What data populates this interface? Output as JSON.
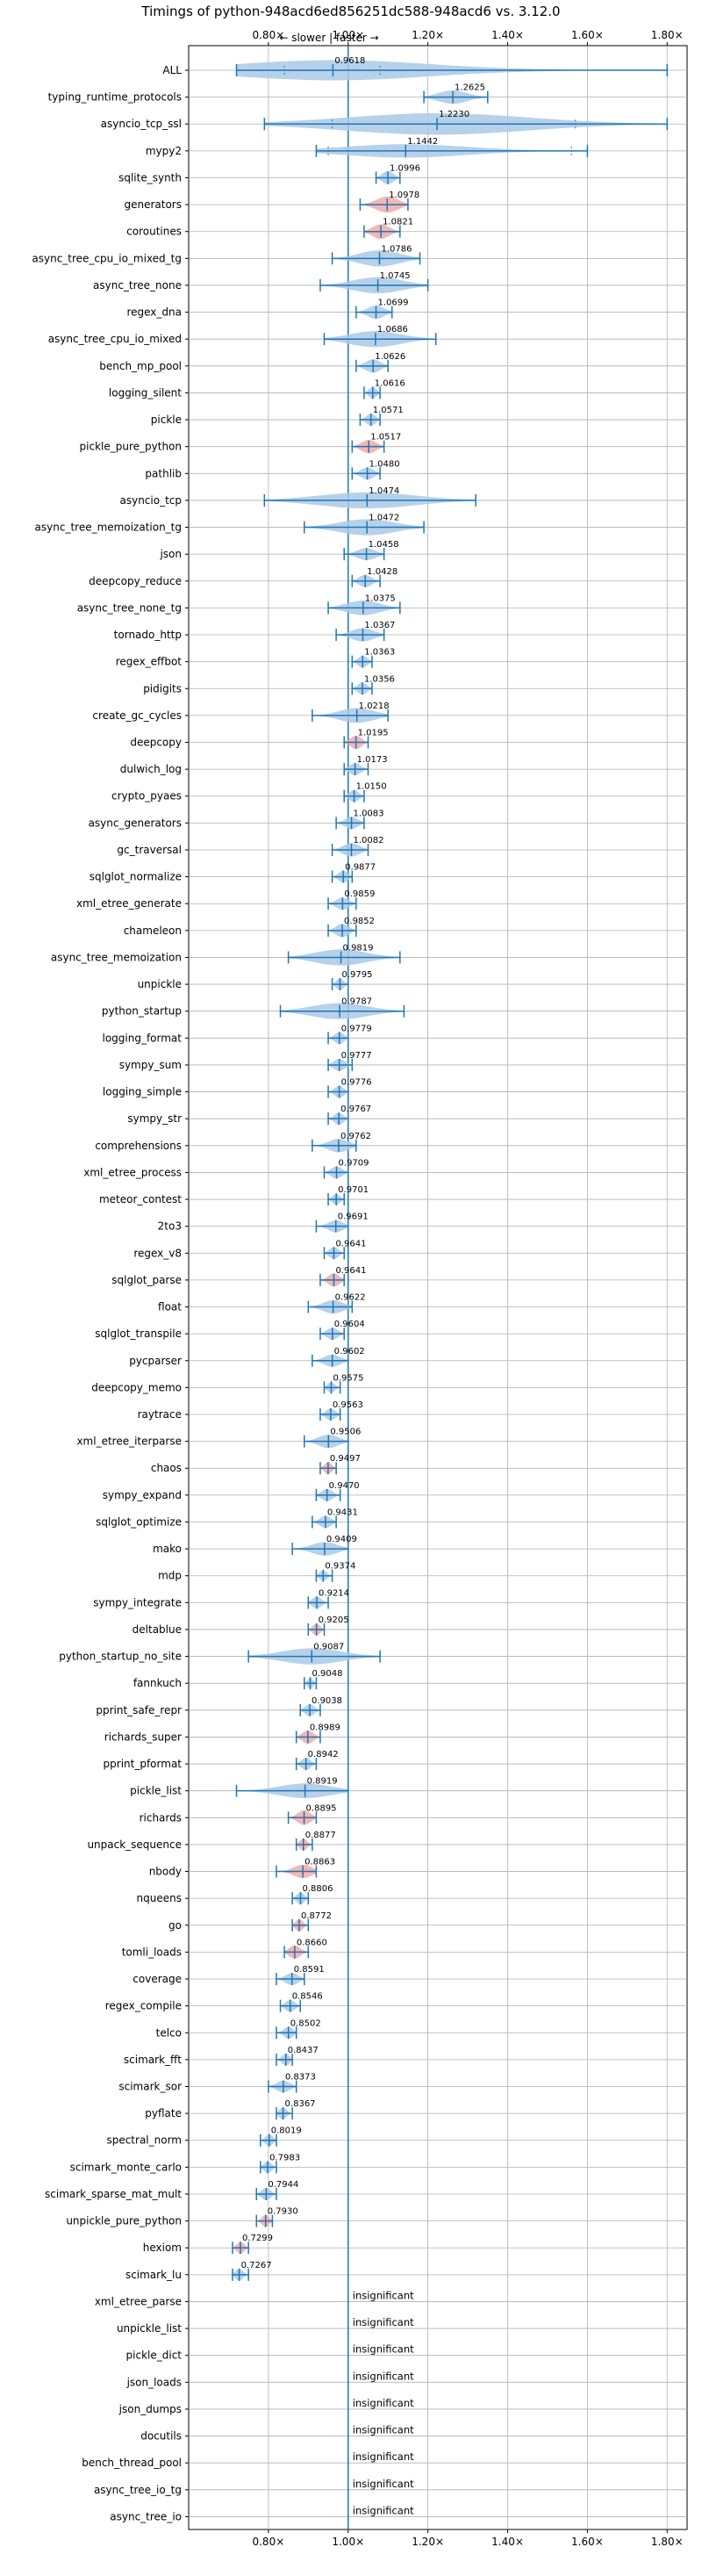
{
  "chart_data": {
    "type": "violin",
    "title": "Timings of python-948acd6ed856251dc588-948acd6 vs. 3.12.0",
    "direction_label": "← slower | faster →",
    "x_ticks": [
      "0.80×",
      "1.00×",
      "1.20×",
      "1.40×",
      "1.60×",
      "1.80×"
    ],
    "x_tick_values": [
      0.8,
      1.0,
      1.2,
      1.4,
      1.6,
      1.8
    ],
    "xlim": [
      0.6,
      1.85
    ],
    "reference_line": 1.0,
    "grid": true,
    "colors": {
      "violin": "#aac9e6",
      "significant": "#f4a9a9",
      "line": "#1f77b4",
      "grid": "#b0b0b0"
    },
    "insignificant_label": "insignificant",
    "benchmarks": [
      {
        "name": "ALL",
        "value": 0.9618,
        "label": "0.9618",
        "min": 0.72,
        "max": 1.8,
        "width": 0.75,
        "significant": false,
        "q1": 0.84,
        "q3": 1.08
      },
      {
        "name": "typing_runtime_protocols",
        "value": 1.2625,
        "label": "1.2625",
        "min": 1.19,
        "max": 1.35,
        "width": 0.5,
        "significant": false
      },
      {
        "name": "asyncio_tcp_ssl",
        "value": 1.223,
        "label": "1.2230",
        "min": 0.79,
        "max": 1.8,
        "width": 0.8,
        "significant": false,
        "q1": 0.96,
        "q3": 1.57
      },
      {
        "name": "mypy2",
        "value": 1.1442,
        "label": "1.1442",
        "min": 0.92,
        "max": 1.6,
        "width": 0.5,
        "significant": false,
        "q1": 0.95,
        "q3": 1.56
      },
      {
        "name": "sqlite_synth",
        "value": 1.0996,
        "label": "1.0996",
        "min": 1.07,
        "max": 1.13,
        "width": 0.5,
        "significant": false
      },
      {
        "name": "generators",
        "value": 1.0978,
        "label": "1.0978",
        "min": 1.03,
        "max": 1.15,
        "width": 0.6,
        "significant": true
      },
      {
        "name": "coroutines",
        "value": 1.0821,
        "label": "1.0821",
        "min": 1.04,
        "max": 1.13,
        "width": 0.55,
        "significant": true
      },
      {
        "name": "async_tree_cpu_io_mixed_tg",
        "value": 1.0786,
        "label": "1.0786",
        "min": 0.96,
        "max": 1.18,
        "width": 0.6,
        "significant": false
      },
      {
        "name": "async_tree_none",
        "value": 1.0745,
        "label": "1.0745",
        "min": 0.93,
        "max": 1.2,
        "width": 0.6,
        "significant": false
      },
      {
        "name": "regex_dna",
        "value": 1.0699,
        "label": "1.0699",
        "min": 1.02,
        "max": 1.11,
        "width": 0.5,
        "significant": false
      },
      {
        "name": "async_tree_cpu_io_mixed",
        "value": 1.0686,
        "label": "1.0686",
        "min": 0.94,
        "max": 1.22,
        "width": 0.6,
        "significant": false
      },
      {
        "name": "bench_mp_pool",
        "value": 1.0626,
        "label": "1.0626",
        "min": 1.02,
        "max": 1.1,
        "width": 0.5,
        "significant": false
      },
      {
        "name": "logging_silent",
        "value": 1.0616,
        "label": "1.0616",
        "min": 1.04,
        "max": 1.08,
        "width": 0.45,
        "significant": false
      },
      {
        "name": "pickle",
        "value": 1.0571,
        "label": "1.0571",
        "min": 1.03,
        "max": 1.08,
        "width": 0.45,
        "significant": false
      },
      {
        "name": "pickle_pure_python",
        "value": 1.0517,
        "label": "1.0517",
        "min": 1.01,
        "max": 1.09,
        "width": 0.5,
        "significant": true
      },
      {
        "name": "pathlib",
        "value": 1.048,
        "label": "1.0480",
        "min": 1.01,
        "max": 1.08,
        "width": 0.45,
        "significant": false
      },
      {
        "name": "asyncio_tcp",
        "value": 1.0474,
        "label": "1.0474",
        "min": 0.79,
        "max": 1.32,
        "width": 0.6,
        "significant": false
      },
      {
        "name": "async_tree_memoization_tg",
        "value": 1.0472,
        "label": "1.0472",
        "min": 0.89,
        "max": 1.19,
        "width": 0.6,
        "significant": false
      },
      {
        "name": "json",
        "value": 1.0458,
        "label": "1.0458",
        "min": 0.99,
        "max": 1.09,
        "width": 0.45,
        "significant": false
      },
      {
        "name": "deepcopy_reduce",
        "value": 1.0428,
        "label": "1.0428",
        "min": 1.01,
        "max": 1.08,
        "width": 0.45,
        "significant": false
      },
      {
        "name": "async_tree_none_tg",
        "value": 1.0375,
        "label": "1.0375",
        "min": 0.95,
        "max": 1.13,
        "width": 0.55,
        "significant": false
      },
      {
        "name": "tornado_http",
        "value": 1.0367,
        "label": "1.0367",
        "min": 0.97,
        "max": 1.09,
        "width": 0.5,
        "significant": false
      },
      {
        "name": "regex_effbot",
        "value": 1.0363,
        "label": "1.0363",
        "min": 1.01,
        "max": 1.06,
        "width": 0.45,
        "significant": false
      },
      {
        "name": "pidigits",
        "value": 1.0356,
        "label": "1.0356",
        "min": 1.01,
        "max": 1.06,
        "width": 0.45,
        "significant": false
      },
      {
        "name": "create_gc_cycles",
        "value": 1.0218,
        "label": "1.0218",
        "min": 0.91,
        "max": 1.1,
        "width": 0.55,
        "significant": false
      },
      {
        "name": "deepcopy",
        "value": 1.0195,
        "label": "1.0195",
        "min": 0.99,
        "max": 1.05,
        "width": 0.5,
        "significant": true
      },
      {
        "name": "dulwich_log",
        "value": 1.0173,
        "label": "1.0173",
        "min": 0.99,
        "max": 1.05,
        "width": 0.45,
        "significant": false
      },
      {
        "name": "crypto_pyaes",
        "value": 1.015,
        "label": "1.0150",
        "min": 0.99,
        "max": 1.04,
        "width": 0.45,
        "significant": false
      },
      {
        "name": "async_generators",
        "value": 1.0083,
        "label": "1.0083",
        "min": 0.97,
        "max": 1.04,
        "width": 0.45,
        "significant": false
      },
      {
        "name": "gc_traversal",
        "value": 1.0082,
        "label": "1.0082",
        "min": 0.96,
        "max": 1.05,
        "width": 0.5,
        "significant": false
      },
      {
        "name": "sqlglot_normalize",
        "value": 0.9877,
        "label": "0.9877",
        "min": 0.96,
        "max": 1.01,
        "width": 0.45,
        "significant": false
      },
      {
        "name": "xml_etree_generate",
        "value": 0.9859,
        "label": "0.9859",
        "min": 0.95,
        "max": 1.02,
        "width": 0.45,
        "significant": false
      },
      {
        "name": "chameleon",
        "value": 0.9852,
        "label": "0.9852",
        "min": 0.95,
        "max": 1.02,
        "width": 0.5,
        "significant": false
      },
      {
        "name": "async_tree_memoization",
        "value": 0.9819,
        "label": "0.9819",
        "min": 0.85,
        "max": 1.13,
        "width": 0.6,
        "significant": false
      },
      {
        "name": "unpickle",
        "value": 0.9795,
        "label": "0.9795",
        "min": 0.96,
        "max": 1.0,
        "width": 0.45,
        "significant": false
      },
      {
        "name": "python_startup",
        "value": 0.9787,
        "label": "0.9787",
        "min": 0.83,
        "max": 1.14,
        "width": 0.6,
        "significant": false
      },
      {
        "name": "logging_format",
        "value": 0.9779,
        "label": "0.9779",
        "min": 0.95,
        "max": 1.0,
        "width": 0.45,
        "significant": false
      },
      {
        "name": "sympy_sum",
        "value": 0.9777,
        "label": "0.9777",
        "min": 0.95,
        "max": 1.01,
        "width": 0.45,
        "significant": false
      },
      {
        "name": "logging_simple",
        "value": 0.9776,
        "label": "0.9776",
        "min": 0.95,
        "max": 1.0,
        "width": 0.45,
        "significant": false
      },
      {
        "name": "sympy_str",
        "value": 0.9767,
        "label": "0.9767",
        "min": 0.95,
        "max": 1.0,
        "width": 0.45,
        "significant": false
      },
      {
        "name": "comprehensions",
        "value": 0.9762,
        "label": "0.9762",
        "min": 0.91,
        "max": 1.02,
        "width": 0.5,
        "significant": false
      },
      {
        "name": "xml_etree_process",
        "value": 0.9709,
        "label": "0.9709",
        "min": 0.94,
        "max": 1.0,
        "width": 0.45,
        "significant": false
      },
      {
        "name": "meteor_contest",
        "value": 0.9701,
        "label": "0.9701",
        "min": 0.95,
        "max": 0.99,
        "width": 0.4,
        "significant": false
      },
      {
        "name": "2to3",
        "value": 0.9691,
        "label": "0.9691",
        "min": 0.92,
        "max": 1.0,
        "width": 0.45,
        "significant": false
      },
      {
        "name": "regex_v8",
        "value": 0.9641,
        "label": "0.9641",
        "min": 0.94,
        "max": 0.99,
        "width": 0.45,
        "significant": false
      },
      {
        "name": "sqlglot_parse",
        "value": 0.9641,
        "label": "0.9641",
        "min": 0.93,
        "max": 0.99,
        "width": 0.5,
        "significant": true
      },
      {
        "name": "float",
        "value": 0.9622,
        "label": "0.9622",
        "min": 0.9,
        "max": 1.01,
        "width": 0.5,
        "significant": false
      },
      {
        "name": "sqlglot_transpile",
        "value": 0.9604,
        "label": "0.9604",
        "min": 0.93,
        "max": 0.99,
        "width": 0.45,
        "significant": false
      },
      {
        "name": "pycparser",
        "value": 0.9602,
        "label": "0.9602",
        "min": 0.91,
        "max": 1.0,
        "width": 0.45,
        "significant": false
      },
      {
        "name": "deepcopy_memo",
        "value": 0.9575,
        "label": "0.9575",
        "min": 0.94,
        "max": 0.98,
        "width": 0.4,
        "significant": false
      },
      {
        "name": "raytrace",
        "value": 0.9563,
        "label": "0.9563",
        "min": 0.93,
        "max": 0.98,
        "width": 0.45,
        "significant": false
      },
      {
        "name": "xml_etree_iterparse",
        "value": 0.9506,
        "label": "0.9506",
        "min": 0.89,
        "max": 1.0,
        "width": 0.5,
        "significant": false
      },
      {
        "name": "chaos",
        "value": 0.9497,
        "label": "0.9497",
        "min": 0.93,
        "max": 0.97,
        "width": 0.45,
        "significant": true
      },
      {
        "name": "sympy_expand",
        "value": 0.947,
        "label": "0.9470",
        "min": 0.92,
        "max": 0.98,
        "width": 0.45,
        "significant": false
      },
      {
        "name": "sqlglot_optimize",
        "value": 0.9431,
        "label": "0.9431",
        "min": 0.91,
        "max": 0.97,
        "width": 0.45,
        "significant": false
      },
      {
        "name": "mako",
        "value": 0.9409,
        "label": "0.9409",
        "min": 0.86,
        "max": 1.0,
        "width": 0.5,
        "significant": false
      },
      {
        "name": "mdp",
        "value": 0.9374,
        "label": "0.9374",
        "min": 0.92,
        "max": 0.96,
        "width": 0.4,
        "significant": false
      },
      {
        "name": "sympy_integrate",
        "value": 0.9214,
        "label": "0.9214",
        "min": 0.9,
        "max": 0.95,
        "width": 0.45,
        "significant": false
      },
      {
        "name": "deltablue",
        "value": 0.9205,
        "label": "0.9205",
        "min": 0.9,
        "max": 0.94,
        "width": 0.45,
        "significant": true
      },
      {
        "name": "python_startup_no_site",
        "value": 0.9087,
        "label": "0.9087",
        "min": 0.75,
        "max": 1.08,
        "width": 0.6,
        "significant": false
      },
      {
        "name": "fannkuch",
        "value": 0.9048,
        "label": "0.9048",
        "min": 0.89,
        "max": 0.92,
        "width": 0.4,
        "significant": false
      },
      {
        "name": "pprint_safe_repr",
        "value": 0.9038,
        "label": "0.9038",
        "min": 0.88,
        "max": 0.93,
        "width": 0.45,
        "significant": false
      },
      {
        "name": "richards_super",
        "value": 0.8989,
        "label": "0.8989",
        "min": 0.87,
        "max": 0.93,
        "width": 0.5,
        "significant": true
      },
      {
        "name": "pprint_pformat",
        "value": 0.8942,
        "label": "0.8942",
        "min": 0.87,
        "max": 0.92,
        "width": 0.45,
        "significant": false
      },
      {
        "name": "pickle_list",
        "value": 0.8919,
        "label": "0.8919",
        "min": 0.72,
        "max": 1.0,
        "width": 0.55,
        "significant": false
      },
      {
        "name": "richards",
        "value": 0.8895,
        "label": "0.8895",
        "min": 0.85,
        "max": 0.92,
        "width": 0.55,
        "significant": true
      },
      {
        "name": "unpack_sequence",
        "value": 0.8877,
        "label": "0.8877",
        "min": 0.87,
        "max": 0.91,
        "width": 0.45,
        "significant": true
      },
      {
        "name": "nbody",
        "value": 0.8863,
        "label": "0.8863",
        "min": 0.82,
        "max": 0.92,
        "width": 0.5,
        "significant": true
      },
      {
        "name": "nqueens",
        "value": 0.8806,
        "label": "0.8806",
        "min": 0.86,
        "max": 0.9,
        "width": 0.45,
        "significant": false
      },
      {
        "name": "go",
        "value": 0.8772,
        "label": "0.8772",
        "min": 0.86,
        "max": 0.9,
        "width": 0.45,
        "significant": true
      },
      {
        "name": "tomli_loads",
        "value": 0.866,
        "label": "0.8660",
        "min": 0.84,
        "max": 0.9,
        "width": 0.5,
        "significant": true
      },
      {
        "name": "coverage",
        "value": 0.8591,
        "label": "0.8591",
        "min": 0.82,
        "max": 0.89,
        "width": 0.45,
        "significant": false
      },
      {
        "name": "regex_compile",
        "value": 0.8546,
        "label": "0.8546",
        "min": 0.83,
        "max": 0.88,
        "width": 0.45,
        "significant": false
      },
      {
        "name": "telco",
        "value": 0.8502,
        "label": "0.8502",
        "min": 0.82,
        "max": 0.87,
        "width": 0.45,
        "significant": false
      },
      {
        "name": "scimark_fft",
        "value": 0.8437,
        "label": "0.8437",
        "min": 0.82,
        "max": 0.86,
        "width": 0.45,
        "significant": false
      },
      {
        "name": "scimark_sor",
        "value": 0.8373,
        "label": "0.8373",
        "min": 0.8,
        "max": 0.87,
        "width": 0.45,
        "significant": false
      },
      {
        "name": "pyflate",
        "value": 0.8367,
        "label": "0.8367",
        "min": 0.82,
        "max": 0.86,
        "width": 0.45,
        "significant": false
      },
      {
        "name": "spectral_norm",
        "value": 0.8019,
        "label": "0.8019",
        "min": 0.78,
        "max": 0.82,
        "width": 0.45,
        "significant": false
      },
      {
        "name": "scimark_monte_carlo",
        "value": 0.7983,
        "label": "0.7983",
        "min": 0.78,
        "max": 0.82,
        "width": 0.45,
        "significant": false
      },
      {
        "name": "scimark_sparse_mat_mult",
        "value": 0.7944,
        "label": "0.7944",
        "min": 0.77,
        "max": 0.82,
        "width": 0.45,
        "significant": false
      },
      {
        "name": "unpickle_pure_python",
        "value": 0.793,
        "label": "0.7930",
        "min": 0.77,
        "max": 0.81,
        "width": 0.45,
        "significant": true
      },
      {
        "name": "hexiom",
        "value": 0.7299,
        "label": "0.7299",
        "min": 0.71,
        "max": 0.75,
        "width": 0.45,
        "significant": true
      },
      {
        "name": "scimark_lu",
        "value": 0.7267,
        "label": "0.7267",
        "min": 0.71,
        "max": 0.75,
        "width": 0.45,
        "significant": false
      },
      {
        "name": "xml_etree_parse",
        "insignificant": true
      },
      {
        "name": "unpickle_list",
        "insignificant": true
      },
      {
        "name": "pickle_dict",
        "insignificant": true
      },
      {
        "name": "json_loads",
        "insignificant": true
      },
      {
        "name": "json_dumps",
        "insignificant": true
      },
      {
        "name": "docutils",
        "insignificant": true
      },
      {
        "name": "bench_thread_pool",
        "insignificant": true
      },
      {
        "name": "async_tree_io_tg",
        "insignificant": true
      },
      {
        "name": "async_tree_io",
        "insignificant": true
      }
    ]
  }
}
